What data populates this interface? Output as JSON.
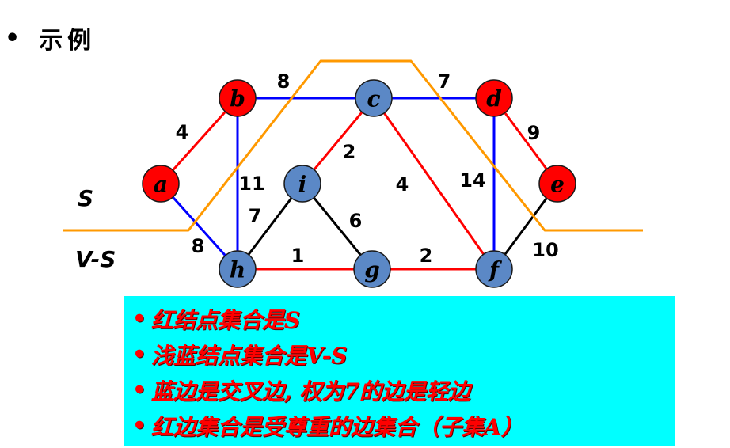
{
  "header": {
    "bullet": "•",
    "title": "示例"
  },
  "graph": {
    "set_labels": {
      "s": "S",
      "vs": "V-S"
    },
    "colors": {
      "red_node": "#ff0000",
      "blue_node": "#5b88c6",
      "red_edge": "#ff0000",
      "blue_edge": "#0000ff",
      "black_edge": "#000000",
      "cut": "#ff9900"
    },
    "nodes": [
      {
        "id": "a",
        "label": "a",
        "color": "red"
      },
      {
        "id": "b",
        "label": "b",
        "color": "red"
      },
      {
        "id": "c",
        "label": "c",
        "color": "blue"
      },
      {
        "id": "d",
        "label": "d",
        "color": "red"
      },
      {
        "id": "e",
        "label": "e",
        "color": "red"
      },
      {
        "id": "f",
        "label": "f",
        "color": "blue"
      },
      {
        "id": "g",
        "label": "g",
        "color": "blue"
      },
      {
        "id": "h",
        "label": "h",
        "color": "blue"
      },
      {
        "id": "i",
        "label": "i",
        "color": "blue"
      }
    ],
    "edges": [
      {
        "from": "a",
        "to": "b",
        "weight": "4",
        "color": "red"
      },
      {
        "from": "a",
        "to": "h",
        "weight": "8",
        "color": "blue"
      },
      {
        "from": "b",
        "to": "c",
        "weight": "8",
        "color": "blue"
      },
      {
        "from": "b",
        "to": "h",
        "weight": "11",
        "color": "blue"
      },
      {
        "from": "c",
        "to": "d",
        "weight": "7",
        "color": "blue"
      },
      {
        "from": "c",
        "to": "i",
        "weight": "2",
        "color": "red"
      },
      {
        "from": "c",
        "to": "f",
        "weight": "4",
        "color": "red"
      },
      {
        "from": "d",
        "to": "e",
        "weight": "9",
        "color": "red"
      },
      {
        "from": "d",
        "to": "f",
        "weight": "14",
        "color": "blue"
      },
      {
        "from": "e",
        "to": "f",
        "weight": "10",
        "color": "black"
      },
      {
        "from": "h",
        "to": "i",
        "weight": "7",
        "color": "black"
      },
      {
        "from": "i",
        "to": "g",
        "weight": "6",
        "color": "black"
      },
      {
        "from": "h",
        "to": "g",
        "weight": "1",
        "color": "red"
      },
      {
        "from": "g",
        "to": "f",
        "weight": "2",
        "color": "red"
      }
    ]
  },
  "notes": {
    "bullet": "•",
    "items": [
      "红结点集合是S",
      "浅蓝结点集合是V-S",
      "蓝边是交叉边, 权为7的边是轻边",
      "红边集合是受尊重的边集合（子集A）"
    ]
  }
}
